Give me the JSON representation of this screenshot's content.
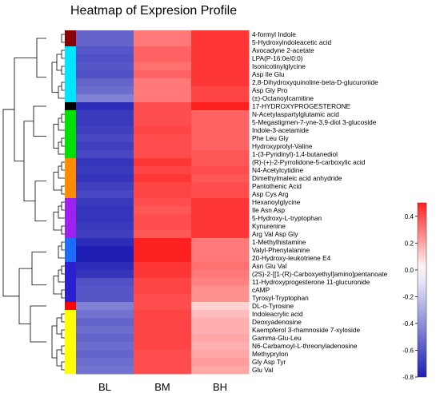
{
  "chart_data": {
    "type": "heatmap",
    "title": "Heatmap of Expresion Profile",
    "columns": [
      "BL",
      "BM",
      "BH"
    ],
    "rows": [
      "4-formyl Indole",
      "5-Hydroxyindoleacetic acid",
      "Avocadyne 2-acetate",
      "LPA(P-16:0e/0:0)",
      "Isonicotinylglycine",
      "Asp Ile Glu",
      "2,8-Dihydroxyquinoline-beta-D-glucuronide",
      "Asp Gly Pro",
      "(±)-Octanoylcarnitine",
      "17-HYDROXYPROGESTERONE",
      "N-Acetylaspartylglutamic acid",
      "5-Megastigmen-7-yne-3,9-diol 3-glucoside",
      "Indole-3-acetamide",
      "Phe Leu Gly",
      "Hydroxyprolyl-Valine",
      "1-(3-Pyridinyl)-1,4-butanediol",
      "(R)-(+)-2-Pyrrolidone-5-carboxylic acid",
      "N4-Acetylcytidine",
      "Dimethylmaleic acid anhydride",
      "Pantothenic Acid",
      "Asp Cys Arg",
      "Hexanoylglycine",
      "Ile Asn Asp",
      "5-Hydroxy-L-tryptophan",
      "Kynurenine",
      "Arg Val Asp Gly",
      "1-Methylhistamine",
      "Valyl-Phenylalanine",
      "20-Hydroxy-leukotriene E4",
      "Asn Glu Val",
      "(2S)-2-[[1-(R)-Carboxyethyl]amino]pentanoate",
      "11-Hydroxyprogesterone 11-glucuronide",
      "cAMP",
      "Tyrosyl-Tryptophan",
      "DL-o-Tyrosine",
      "Indoleacrylic acid",
      "Deoxyadenosine",
      "Kaempferol 3-rhamnoside 7-xyloside",
      "Gamma-Glu-Leu",
      "N6-Carbamoyl-L-threonyladenosine",
      "Methyprylon",
      "Gly Asp Tyr",
      "Glu Val"
    ],
    "values": [
      [
        -0.55,
        0.3,
        0.45
      ],
      [
        -0.55,
        0.3,
        0.45
      ],
      [
        -0.6,
        0.35,
        0.45
      ],
      [
        -0.62,
        0.35,
        0.45
      ],
      [
        -0.6,
        0.32,
        0.45
      ],
      [
        -0.62,
        0.35,
        0.45
      ],
      [
        -0.55,
        0.3,
        0.45
      ],
      [
        -0.52,
        0.3,
        0.42
      ],
      [
        -0.45,
        0.3,
        0.42
      ],
      [
        -0.75,
        0.4,
        0.5
      ],
      [
        -0.7,
        0.4,
        0.35
      ],
      [
        -0.7,
        0.4,
        0.35
      ],
      [
        -0.68,
        0.42,
        0.35
      ],
      [
        -0.65,
        0.4,
        0.35
      ],
      [
        -0.68,
        0.4,
        0.35
      ],
      [
        -0.65,
        0.4,
        0.38
      ],
      [
        -0.72,
        0.45,
        0.38
      ],
      [
        -0.7,
        0.42,
        0.4
      ],
      [
        -0.72,
        0.45,
        0.38
      ],
      [
        -0.68,
        0.42,
        0.4
      ],
      [
        -0.65,
        0.42,
        0.4
      ],
      [
        -0.7,
        0.4,
        0.45
      ],
      [
        -0.72,
        0.38,
        0.45
      ],
      [
        -0.72,
        0.4,
        0.45
      ],
      [
        -0.7,
        0.4,
        0.45
      ],
      [
        -0.68,
        0.38,
        0.45
      ],
      [
        -0.75,
        0.52,
        0.3
      ],
      [
        -0.85,
        0.55,
        0.3
      ],
      [
        -0.82,
        0.55,
        0.3
      ],
      [
        -0.75,
        0.45,
        0.32
      ],
      [
        -0.72,
        0.45,
        0.3
      ],
      [
        -0.62,
        0.42,
        0.28
      ],
      [
        -0.6,
        0.42,
        0.25
      ],
      [
        -0.6,
        0.4,
        0.25
      ],
      [
        -0.45,
        0.4,
        0.1
      ],
      [
        -0.5,
        0.42,
        0.15
      ],
      [
        -0.55,
        0.42,
        0.18
      ],
      [
        -0.52,
        0.42,
        0.18
      ],
      [
        -0.55,
        0.42,
        0.2
      ],
      [
        -0.52,
        0.42,
        0.18
      ],
      [
        -0.55,
        0.4,
        0.2
      ],
      [
        -0.52,
        0.4,
        0.22
      ],
      [
        -0.5,
        0.4,
        0.2
      ]
    ],
    "clusters": [
      {
        "color": "#8b0000",
        "count": 2
      },
      {
        "color": "#00e5ff",
        "count": 7
      },
      {
        "color": "#000000",
        "count": 1
      },
      {
        "color": "#00e000",
        "count": 6
      },
      {
        "color": "#ff8c00",
        "count": 5
      },
      {
        "color": "#a020f0",
        "count": 5
      },
      {
        "color": "#1e6cff",
        "count": 3
      },
      {
        "color": "#2b1fd0",
        "count": 5
      },
      {
        "color": "#ff0000",
        "count": 1
      },
      {
        "color": "#ffff00",
        "count": 8
      }
    ],
    "colorbar": {
      "min": -0.8,
      "max": 0.5,
      "ticks": [
        0.4,
        0.2,
        0.0,
        -0.2,
        -0.4,
        -0.6,
        -0.8
      ],
      "tick_labels": [
        "0.4",
        "0.2",
        "0.0",
        "-0.2",
        "-0.4",
        "-0.6",
        "-0.8"
      ],
      "low_color": "#1e1eb4",
      "mid_color": "#ffffff",
      "high_color": "#ff2020"
    }
  }
}
